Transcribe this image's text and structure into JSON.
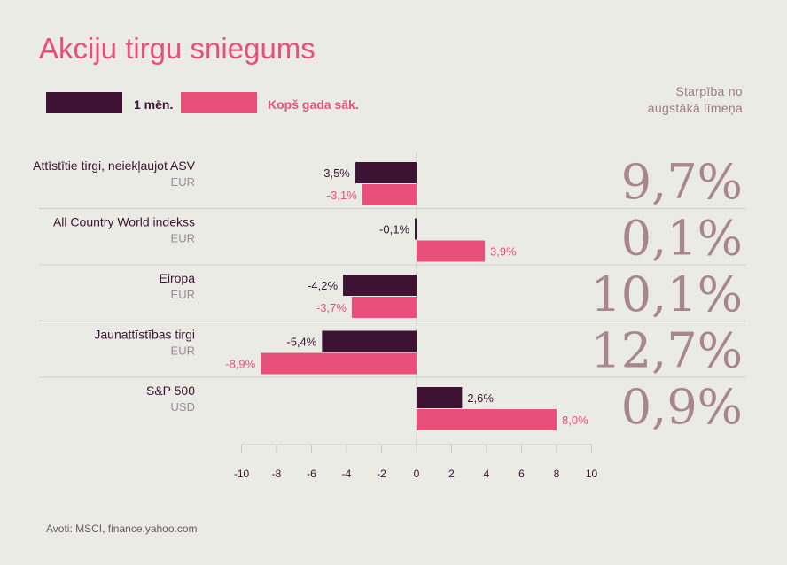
{
  "title": "Akciju tirgu sniegums",
  "legend": {
    "series_1": "1 mēn.",
    "series_2": "Kopš gada sāk."
  },
  "side_header": [
    "Starpība no",
    "augstākā līmeņa"
  ],
  "source": "Avoti: MSCI, finance.yahoo.com",
  "colors": {
    "series_1": "#3d1233",
    "series_2": "#e8507a",
    "big_value": "#a8868f",
    "background": "#ebebe6"
  },
  "chart_data": {
    "type": "bar",
    "orientation": "horizontal",
    "xlim": [
      -10,
      10
    ],
    "x_ticks": [
      "-10",
      "-8",
      "-6",
      "-4",
      "-2",
      "0",
      "2",
      "4",
      "6",
      "8",
      "10"
    ],
    "categories": [
      {
        "name": "Attīstītie tirgi, neiekļaujot ASV",
        "currency": "EUR",
        "one_month": -3.5,
        "one_month_label": "-3,5%",
        "ytd": -3.1,
        "ytd_label": "-3,1%",
        "from_high": "9,7%"
      },
      {
        "name": "All Country World indekss",
        "currency": "EUR",
        "one_month": -0.1,
        "one_month_label": "-0,1%",
        "ytd": 3.9,
        "ytd_label": "3,9%",
        "from_high": "0,1%"
      },
      {
        "name": "Eiropa",
        "currency": "EUR",
        "one_month": -4.2,
        "one_month_label": "-4,2%",
        "ytd": -3.7,
        "ytd_label": "-3,7%",
        "from_high": "10,1%"
      },
      {
        "name": "Jaunattīstības tirgi",
        "currency": "EUR",
        "one_month": -5.4,
        "one_month_label": "-5,4%",
        "ytd": -8.9,
        "ytd_label": "-8,9%",
        "from_high": "12,7%"
      },
      {
        "name": "S&P 500",
        "currency": "USD",
        "one_month": 2.6,
        "one_month_label": "2,6%",
        "ytd": 8.0,
        "ytd_label": "8,0%",
        "from_high": "0,9%"
      }
    ],
    "series": [
      {
        "name": "1 mēn.",
        "key": "one_month"
      },
      {
        "name": "Kopš gada sāk.",
        "key": "ytd"
      }
    ]
  }
}
